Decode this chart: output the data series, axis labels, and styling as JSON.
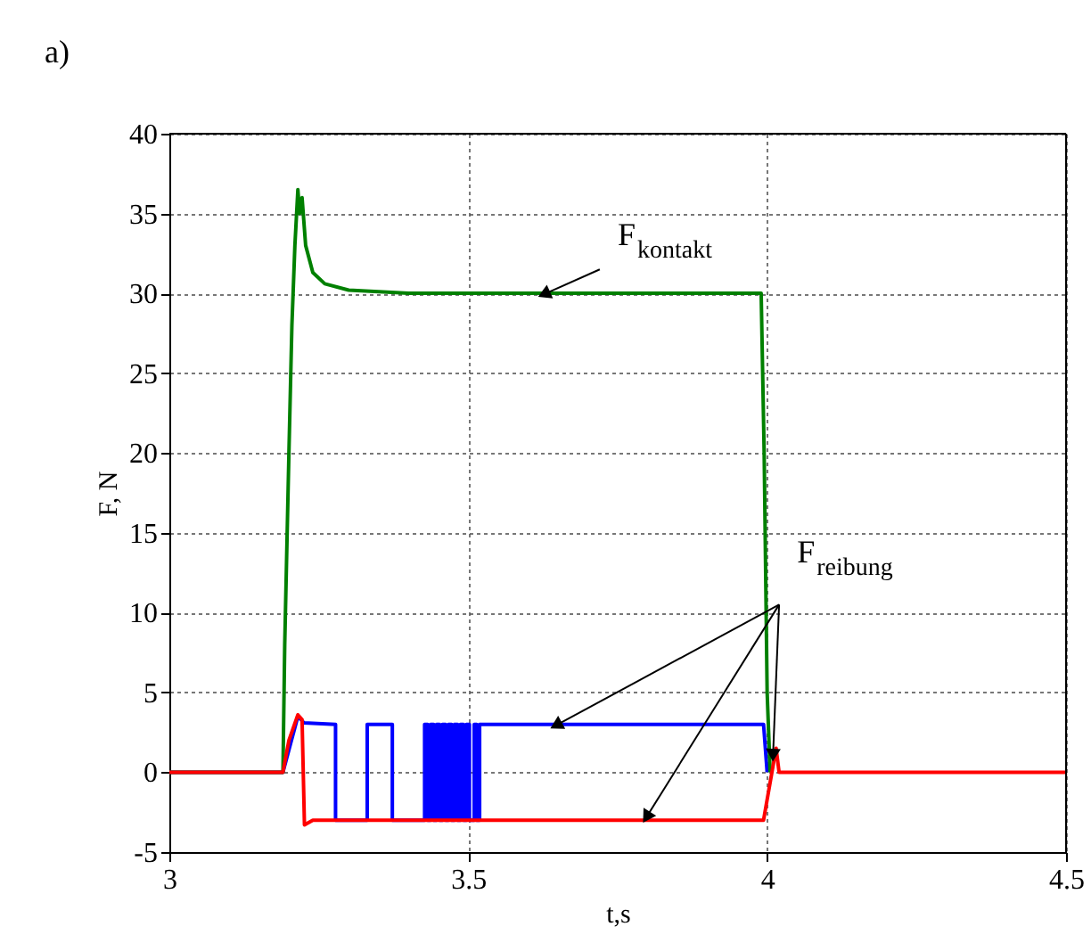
{
  "chart_data": {
    "type": "line",
    "xlabel": "t,s",
    "ylabel": "F, N",
    "xlim": [
      3,
      4.5
    ],
    "xticks": [
      {
        "value": 3,
        "label": "3"
      },
      3.5,
      {
        "value": 4,
        "label": "4"
      },
      4.5
    ],
    "ylim": [
      -5,
      40
    ],
    "yticks": [
      -5,
      0,
      5,
      10,
      15,
      20,
      25,
      30,
      35,
      40
    ],
    "grid": true,
    "legend": false,
    "line_style": "solid",
    "marker": "none",
    "annotations": [
      "a)",
      {
        "text": "F$_{kontakt}$",
        "x": 3.63,
        "y": 30
      },
      {
        "text": "F$_{reibung}$",
        "x": 3.65,
        "y": 3
      }
    ],
    "series": [
      {
        "color": "#0000ff",
        "x": [
          3.0,
          3.19,
          3.215,
          3.225,
          3.278,
          3.278,
          3.331,
          3.331,
          3.373,
          3.373,
          3.427,
          3.427,
          3.432,
          3.432,
          3.437,
          3.437,
          3.442,
          3.442,
          3.447,
          3.447,
          3.452,
          3.452,
          3.457,
          3.457,
          3.462,
          3.462,
          3.467,
          3.467,
          3.472,
          3.472,
          3.477,
          3.477,
          3.482,
          3.482,
          3.487,
          3.487,
          3.492,
          3.492,
          3.497,
          3.497,
          3.502,
          3.502,
          3.51,
          3.51,
          3.514,
          3.514,
          3.519,
          3.519,
          3.994,
          4.0
        ],
        "values": [
          0,
          0,
          3.5,
          3.1,
          3,
          -3,
          -3,
          3,
          3,
          -3,
          -3,
          3,
          3,
          -3,
          -3,
          3,
          3,
          -3,
          -3,
          3,
          3,
          -3,
          -3,
          3,
          3,
          -3,
          -3,
          3,
          3,
          -3,
          -3,
          3,
          3,
          -3,
          -3,
          3,
          3,
          -3,
          -3,
          3,
          3,
          -3,
          -3,
          3,
          3,
          -3,
          -3,
          3,
          3,
          0
        ]
      },
      {
        "color": "#008000",
        "x": [
          3.0,
          3.19,
          3.193,
          3.2,
          3.205,
          3.21,
          3.215,
          3.218,
          3.222,
          3.228,
          3.24,
          3.26,
          3.3,
          3.4,
          3.99,
          3.995,
          4.0,
          4.005
        ],
        "values": [
          0,
          0,
          8,
          20,
          28,
          33,
          36.5,
          35,
          36,
          33,
          31.3,
          30.6,
          30.2,
          30,
          30,
          20,
          5,
          0
        ]
      },
      {
        "color": "#ff0000",
        "x": [
          3.0,
          3.19,
          3.2,
          3.215,
          3.222,
          3.226,
          3.24,
          3.994,
          4.015,
          4.02,
          4.5
        ],
        "values": [
          0,
          0,
          2,
          3.6,
          3.3,
          -3.3,
          -3,
          -3,
          1.5,
          0,
          0
        ]
      }
    ]
  }
}
